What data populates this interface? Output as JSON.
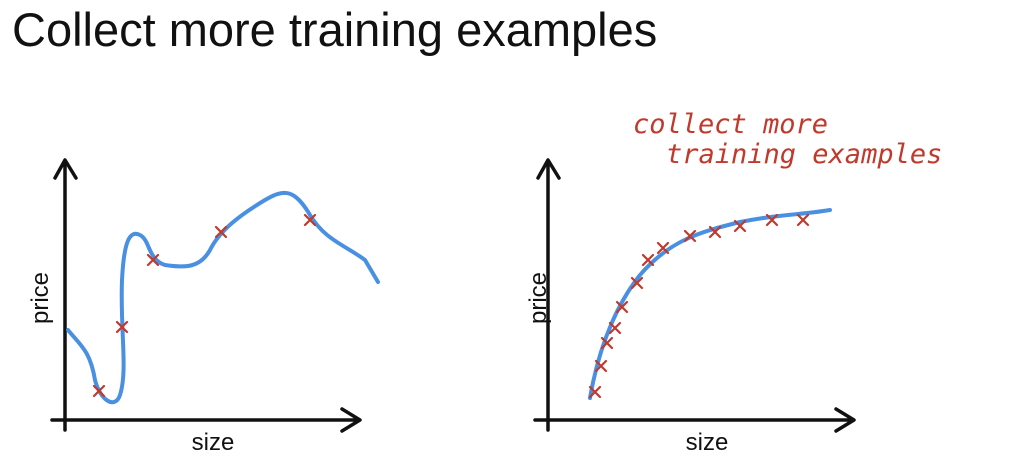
{
  "title": "Collect more training examples",
  "plots": [
    {
      "x_label": "size",
      "y_label": "price"
    },
    {
      "x_label": "size",
      "y_label": "price",
      "annotation": [
        "collect more",
        "training examples"
      ]
    }
  ]
}
